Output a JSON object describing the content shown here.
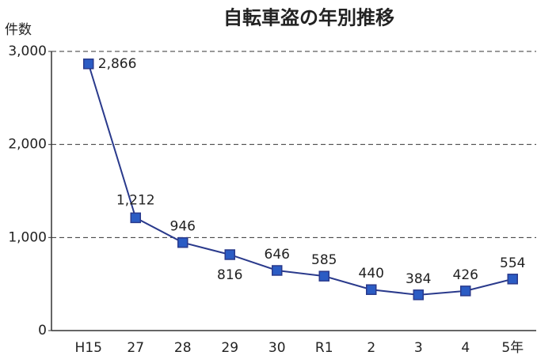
{
  "chart_data": {
    "type": "line",
    "title": "自転車盗の年別推移",
    "y_label": "件数",
    "categories": [
      "H15",
      "27",
      "28",
      "29",
      "30",
      "R1",
      "2",
      "3",
      "4",
      "5年"
    ],
    "values": [
      2866,
      1212,
      946,
      816,
      646,
      585,
      440,
      384,
      426,
      554
    ],
    "value_labels": [
      "2,866",
      "1,212",
      "946",
      "816",
      "646",
      "585",
      "440",
      "384",
      "426",
      "554"
    ],
    "color": "#2a3a8c",
    "marker_color": "#2b5cc4",
    "ylim": [
      0,
      3000
    ],
    "yticks": [
      0,
      {
        "value": 1000,
        "label": "1,000"
      },
      {
        "value": 2000,
        "label": "2,000"
      },
      {
        "value": 3000,
        "label": "3,000"
      }
    ],
    "grid": true
  }
}
